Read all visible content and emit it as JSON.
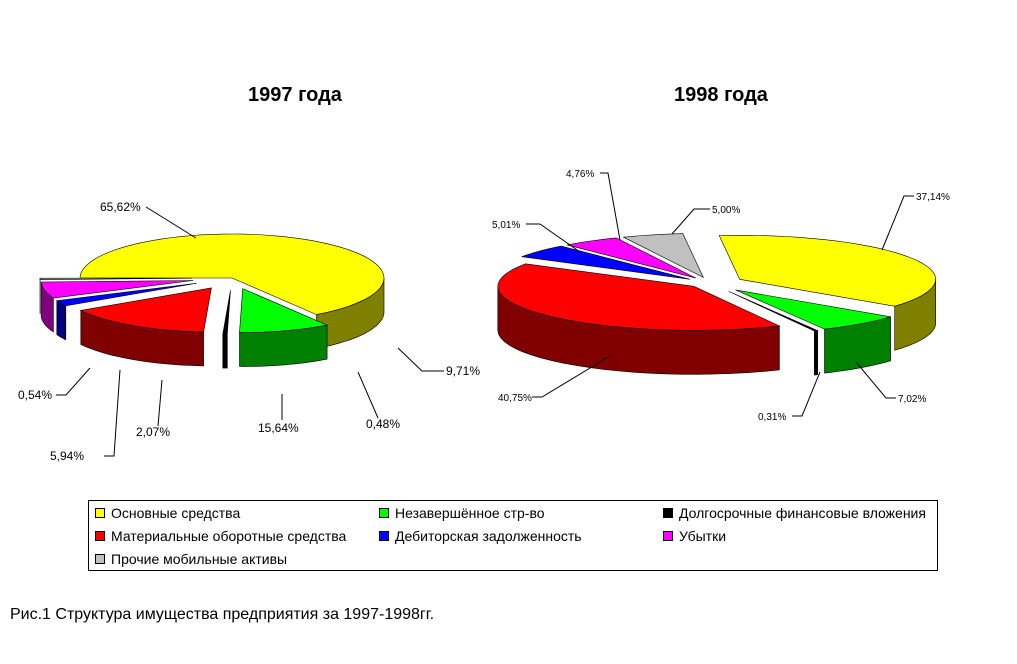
{
  "chart_data": [
    {
      "type": "pie",
      "title": "1997 года",
      "slices": [
        {
          "name": "Основные средства",
          "value": 65.62,
          "label": "65,62%"
        },
        {
          "name": "Незавершённое стр-во",
          "value": 9.71,
          "label": "9,71%"
        },
        {
          "name": "Долгосрочные финансовые вложения",
          "value": 0.48,
          "label": "0,48%"
        },
        {
          "name": "Материальные оборотные средства",
          "value": 15.64,
          "label": "15,64%"
        },
        {
          "name": "Дебиторская задолженность",
          "value": 2.07,
          "label": "2,07%"
        },
        {
          "name": "Убытки",
          "value": 5.94,
          "label": "5,94%"
        },
        {
          "name": "Прочие мобильные активы",
          "value": 0.54,
          "label": "0,54%"
        }
      ]
    },
    {
      "type": "pie",
      "title": "1998 года",
      "slices": [
        {
          "name": "Основные средства",
          "value": 37.14,
          "label": "37,14%"
        },
        {
          "name": "Незавершённое стр-во",
          "value": 7.02,
          "label": "7,02%"
        },
        {
          "name": "Долгосрочные финансовые вложения",
          "value": 0.31,
          "label": "0,31%"
        },
        {
          "name": "Материальные оборотные средства",
          "value": 40.75,
          "label": "40,75%"
        },
        {
          "name": "Дебиторская задолженность",
          "value": 5.01,
          "label": "5,01%"
        },
        {
          "name": "Убытки",
          "value": 4.76,
          "label": "4,76%"
        },
        {
          "name": "Прочие мобильные активы",
          "value": 5.0,
          "label": "5,00%"
        }
      ]
    }
  ],
  "legend": [
    {
      "label": "Основные средства",
      "color": "#FFFF00"
    },
    {
      "label": "Незавершённое стр-во",
      "color": "#00FF00"
    },
    {
      "label": "Долгосрочные финансовые вложения",
      "color": "#000000"
    },
    {
      "label": "Материальные оборотные средства",
      "color": "#FF0000"
    },
    {
      "label": "Дебиторская задолженность",
      "color": "#0000FF"
    },
    {
      "label": "Убытки",
      "color": "#FF00FF"
    },
    {
      "label": "Прочие мобильные активы",
      "color": "#C0C0C0"
    }
  ],
  "colors": {
    "Основные средства": "#FFFF00",
    "Незавершённое стр-во": "#00FF00",
    "Долгосрочные финансовые вложения": "#000000",
    "Материальные оборотные средства": "#FF0000",
    "Дебиторская задолженность": "#0000FF",
    "Убытки": "#FF00FF",
    "Прочие мобильные активы": "#C0C0C0"
  },
  "caption": "Рис.1 Структура имущества предприятия за 1997-1998гг."
}
